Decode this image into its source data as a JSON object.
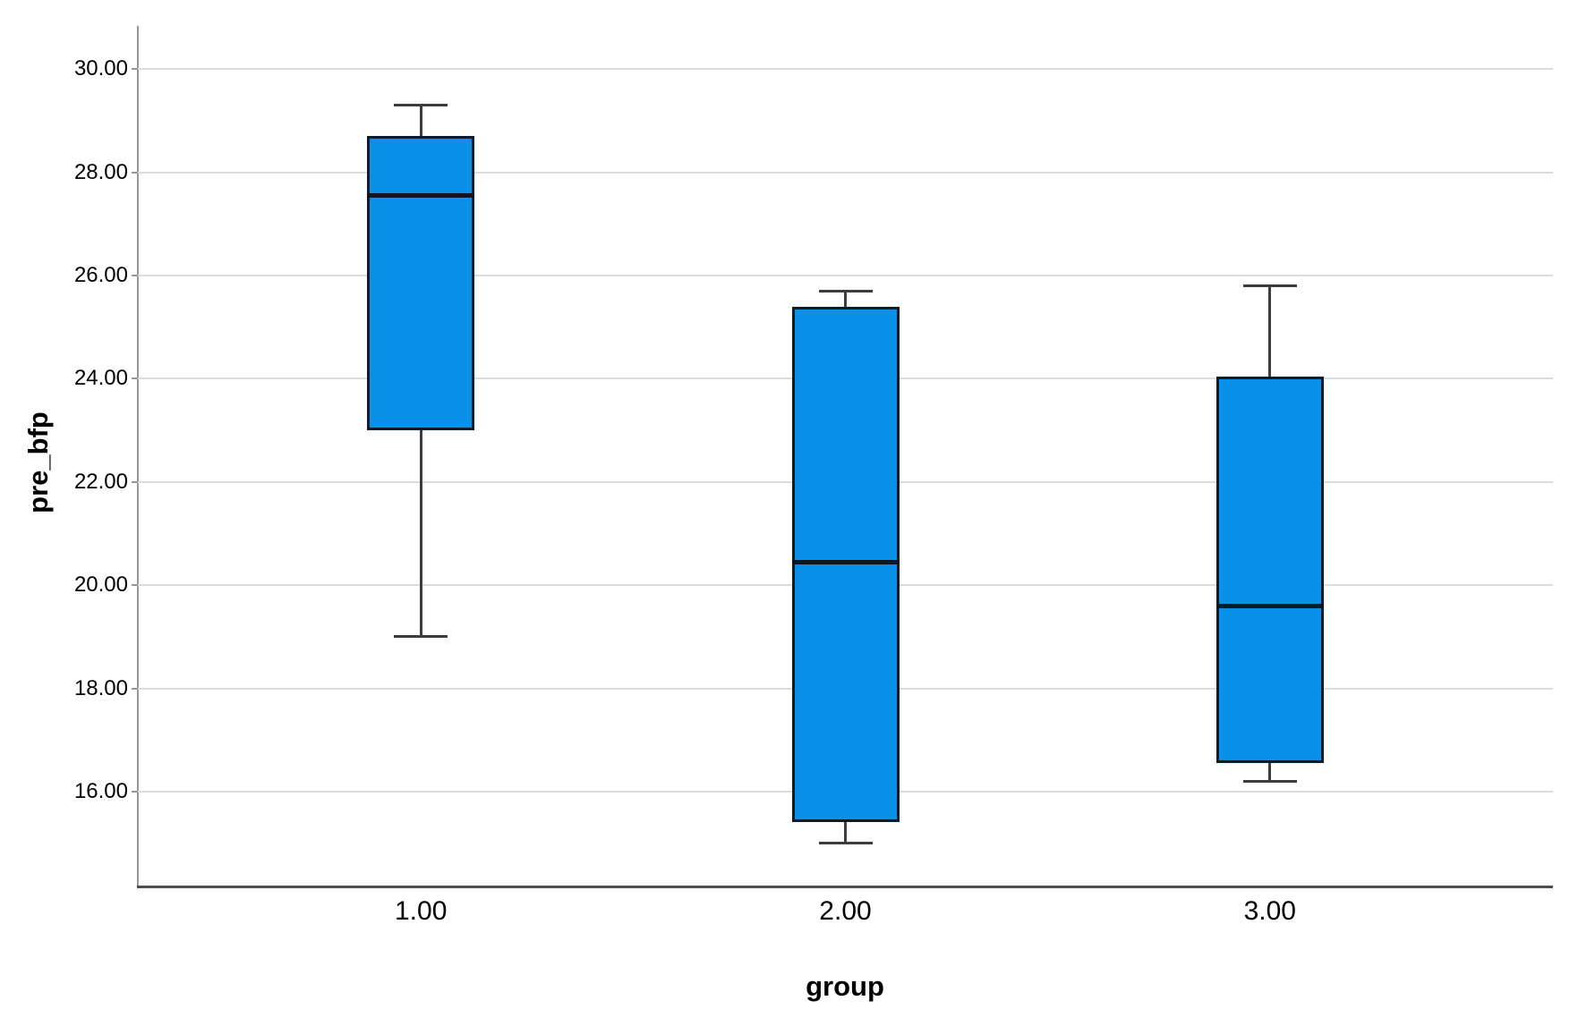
{
  "chart_data": {
    "type": "boxplot",
    "title": "",
    "xlabel": "group",
    "ylabel": "pre_bfp",
    "categories": [
      "1.00",
      "2.00",
      "3.00"
    ],
    "series": [
      {
        "category": "1.00",
        "whisker_low": 19.0,
        "q1": 23.0,
        "median": 27.55,
        "q3": 28.7,
        "whisker_high": 29.3
      },
      {
        "category": "2.00",
        "whisker_low": 15.0,
        "q1": 15.4,
        "median": 20.45,
        "q3": 25.4,
        "whisker_high": 25.7
      },
      {
        "category": "3.00",
        "whisker_low": 16.2,
        "q1": 16.55,
        "median": 19.6,
        "q3": 24.05,
        "whisker_high": 25.8
      }
    ],
    "y_ticks": [
      16,
      18,
      20,
      22,
      24,
      26,
      28,
      30
    ],
    "y_tick_labels": [
      "16.00",
      "18.00",
      "20.00",
      "22.00",
      "24.00",
      "26.00",
      "28.00",
      "30.00"
    ],
    "ylim": [
      14.16,
      30.84
    ],
    "grid": true,
    "legend": "none",
    "colors": {
      "box_fill": "#0991EA",
      "box_border": "#0E1B28",
      "median": "#0A1622",
      "whisker": "#3D3D3F",
      "gridline": "#DCDCDC",
      "y_axis": "#979797",
      "x_axis": "#4E4E4E",
      "text": "#000000",
      "background": "#FFFFFF"
    }
  }
}
